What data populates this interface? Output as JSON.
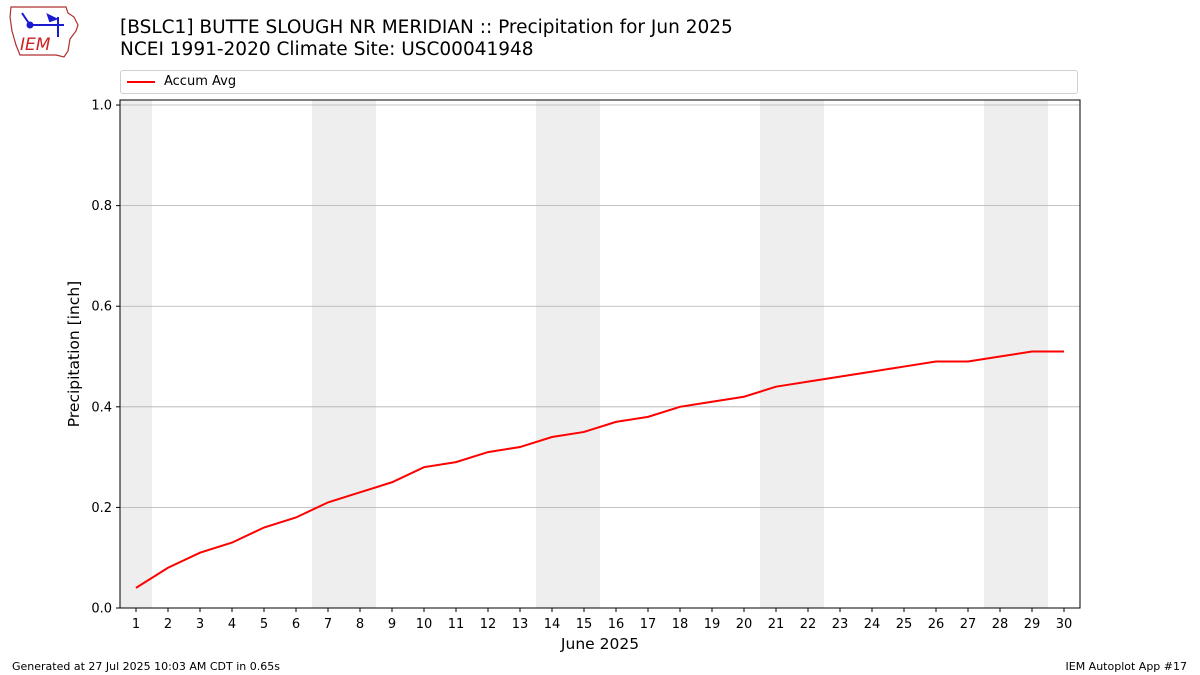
{
  "logo": {
    "text": "IEM"
  },
  "header": {
    "title_line1": "[BSLC1] BUTTE SLOUGH NR MERIDIAN :: Precipitation for Jun 2025",
    "title_line2": "NCEI 1991-2020 Climate Site: USC00041948"
  },
  "footer": {
    "generated": "Generated at 27 Jul 2025 10:03 AM CDT in 0.65s",
    "app": "IEM Autoplot App #17"
  },
  "colors": {
    "line": "#ff0000",
    "weekend_band": "#eeeeee",
    "grid": "#b0b0b0"
  },
  "chart_data": {
    "type": "line",
    "xlabel": "June 2025",
    "ylabel": "Precipitation [inch]",
    "xlim": [
      0.5,
      30.5
    ],
    "ylim": [
      0.0,
      1.01
    ],
    "x": [
      1,
      2,
      3,
      4,
      5,
      6,
      7,
      8,
      9,
      10,
      11,
      12,
      13,
      14,
      15,
      16,
      17,
      18,
      19,
      20,
      21,
      22,
      23,
      24,
      25,
      26,
      27,
      28,
      29,
      30
    ],
    "x_tick_labels": [
      "1",
      "2",
      "3",
      "4",
      "5",
      "6",
      "7",
      "8",
      "9",
      "10",
      "11",
      "12",
      "13",
      "14",
      "15",
      "16",
      "17",
      "18",
      "19",
      "20",
      "21",
      "22",
      "23",
      "24",
      "25",
      "26",
      "27",
      "28",
      "29",
      "30"
    ],
    "y_ticks": [
      0.0,
      0.2,
      0.4,
      0.6,
      0.8,
      1.0
    ],
    "y_tick_labels": [
      "0.0",
      "0.2",
      "0.4",
      "0.6",
      "0.8",
      "1.0"
    ],
    "grid": "y",
    "legend": "top",
    "shaded_weekend_days": [
      1,
      7,
      8,
      14,
      15,
      21,
      22,
      28,
      29
    ],
    "series": [
      {
        "name": "Accum Avg",
        "values": [
          0.04,
          0.08,
          0.11,
          0.13,
          0.16,
          0.18,
          0.21,
          0.23,
          0.25,
          0.28,
          0.29,
          0.31,
          0.32,
          0.34,
          0.35,
          0.37,
          0.38,
          0.4,
          0.41,
          0.42,
          0.44,
          0.45,
          0.46,
          0.47,
          0.48,
          0.49,
          0.49,
          0.5,
          0.51,
          0.51
        ]
      }
    ]
  }
}
